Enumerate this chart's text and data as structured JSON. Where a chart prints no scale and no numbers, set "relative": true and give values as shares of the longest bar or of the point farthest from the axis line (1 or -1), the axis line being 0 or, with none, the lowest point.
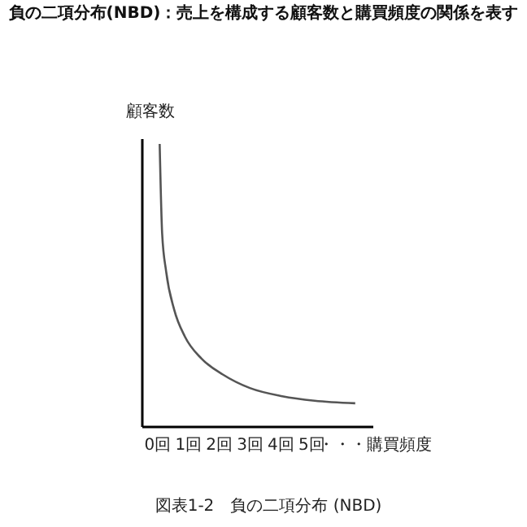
{
  "chart_data": {
    "type": "line",
    "title": "負の二項分布(NBD)：売上を構成する顧客数と購買頻度の関係を表す",
    "xlabel": "購買頻度",
    "ylabel": "顧客数",
    "annotations": [
      "図表1-2　負の二項分布 (NBD)"
    ],
    "relative": true,
    "tick_labels": "x",
    "xlim": [
      -0.5,
      7
    ],
    "xticks": [
      {
        "value": 0,
        "label": "0回"
      },
      {
        "value": 1,
        "label": "1回"
      },
      {
        "value": 2,
        "label": "2回"
      },
      {
        "value": 3,
        "label": "3回"
      },
      {
        "value": 4,
        "label": "4回"
      },
      {
        "value": 5,
        "label": "5回"
      },
      {
        "value": 6,
        "label": "・・・"
      }
    ],
    "series": [
      {
        "color": "#555555",
        "x": [
          0.09,
          0.17,
          0.3,
          0.56,
          0.91,
          1.44,
          2.14,
          3.02,
          4.07,
          5.12,
          6.44
        ],
        "values": [
          1.0,
          0.683,
          0.548,
          0.413,
          0.317,
          0.24,
          0.183,
          0.135,
          0.106,
          0.09,
          0.081
        ]
      }
    ]
  }
}
